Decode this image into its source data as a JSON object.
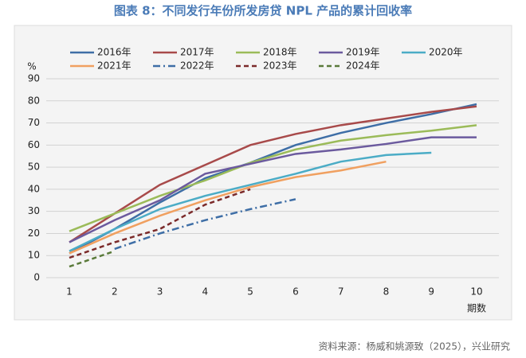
{
  "chart_data": {
    "type": "line",
    "title": "图表 8：不同发行年份所发房贷 NPL 产品的累计回收率",
    "y_label": "%",
    "x_label": "期数",
    "source": "资料来源：杨威和姚源致（2025），兴业研究",
    "x": [
      1,
      2,
      3,
      4,
      5,
      6,
      7,
      8,
      9,
      10
    ],
    "xlim": [
      0.5,
      10.5
    ],
    "xticks": [
      1,
      2,
      3,
      4,
      5,
      6,
      7,
      8,
      9,
      10
    ],
    "ylim": [
      0,
      90
    ],
    "yticks": [
      0,
      10,
      20,
      30,
      40,
      50,
      60,
      70,
      80,
      90
    ],
    "grid": true,
    "series": [
      {
        "name": "2016年",
        "color": "#3e6ea6",
        "style": "solid",
        "values": [
          11,
          22,
          34,
          45,
          52,
          60,
          65.5,
          70,
          74,
          78.5
        ]
      },
      {
        "name": "2017年",
        "color": "#a84a4a",
        "style": "solid",
        "values": [
          16,
          29,
          42,
          51,
          60,
          65,
          69,
          72,
          75,
          77.5
        ]
      },
      {
        "name": "2018年",
        "color": "#9bbb59",
        "style": "solid",
        "values": [
          21,
          29,
          37,
          44,
          52,
          58,
          62,
          64.5,
          66.5,
          69
        ]
      },
      {
        "name": "2019年",
        "color": "#6b5a9e",
        "style": "solid",
        "values": [
          16,
          26,
          35,
          47,
          51.5,
          56,
          58,
          60.5,
          63.5,
          63.5
        ]
      },
      {
        "name": "2020年",
        "color": "#4bacc6",
        "style": "solid",
        "values": [
          12,
          22,
          31,
          37,
          42,
          47,
          52.5,
          55.5,
          56.5,
          null
        ]
      },
      {
        "name": "2021年",
        "color": "#f0a060",
        "style": "solid",
        "values": [
          11,
          20,
          28,
          35,
          41,
          45.5,
          48.5,
          52.5,
          null,
          null
        ]
      },
      {
        "name": "2022年",
        "color": "#3e6ea6",
        "style": "dashdot",
        "values": [
          null,
          13,
          20,
          26,
          31,
          35.5,
          null,
          null,
          null,
          null
        ]
      },
      {
        "name": "2023年",
        "color": "#7b2a2a",
        "style": "dashed",
        "values": [
          9,
          16,
          22,
          33,
          40,
          null,
          null,
          null,
          null,
          null
        ]
      },
      {
        "name": "2024年",
        "color": "#5a7a3a",
        "style": "dashed",
        "values": [
          5,
          12,
          null,
          null,
          null,
          null,
          null,
          null,
          null,
          null
        ]
      }
    ]
  }
}
